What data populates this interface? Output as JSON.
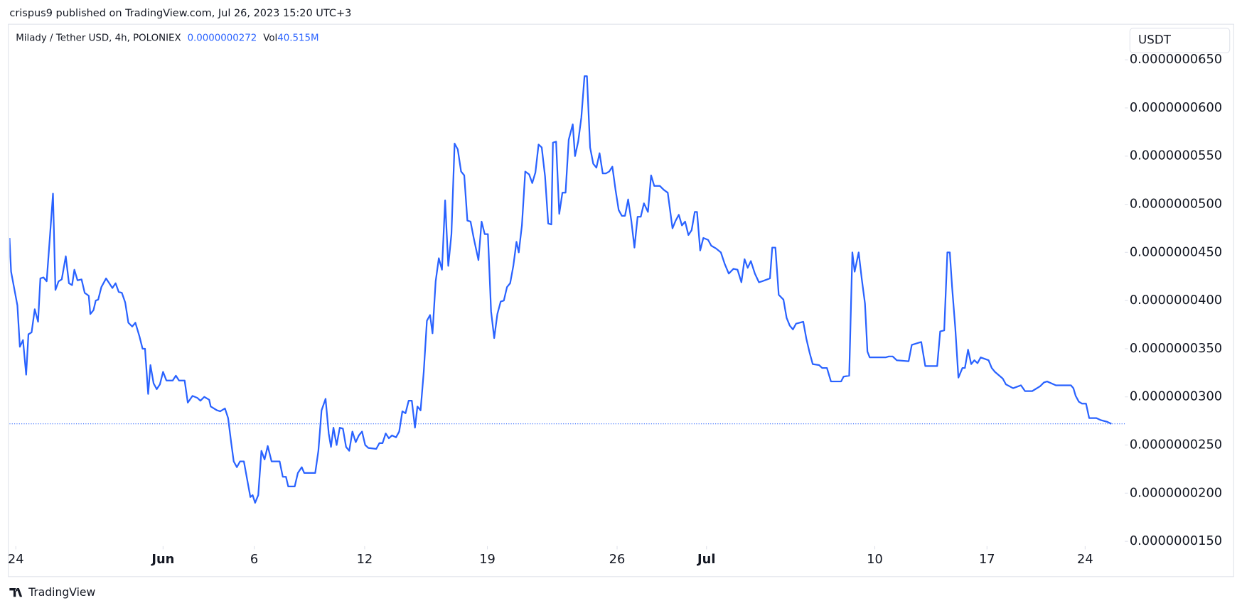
{
  "header": {
    "published": "crispus9 published on TradingView.com, Jul 26, 2023 15:20 UTC+3",
    "symbol": "Milady / Tether USD, 4h, POLONIEX",
    "volume_label": "Vol",
    "volume": "40.515M",
    "currency": "USDT"
  },
  "footer": {
    "brand": "TradingView"
  },
  "chart_data": {
    "type": "line",
    "color": "#2962ff",
    "last_price": {
      "value": 2.72e-08,
      "label": "0.0000000272"
    },
    "xlim": [
      -0.36,
      63.26
    ],
    "xticks": [
      {
        "value": 0,
        "label": "24"
      },
      {
        "value": 8.4,
        "label": "Jun"
      },
      {
        "value": 13.6,
        "label": "6"
      },
      {
        "value": 19.9,
        "label": "12"
      },
      {
        "value": 26.9,
        "label": "19"
      },
      {
        "value": 34.3,
        "label": "26"
      },
      {
        "value": 39.4,
        "label": "Jul"
      },
      {
        "value": 49,
        "label": "10"
      },
      {
        "value": 55.4,
        "label": "17"
      },
      {
        "value": 61,
        "label": "24"
      }
    ],
    "ylim": [
      1.45e-08,
      6.61e-08
    ],
    "yticks": [
      {
        "value": 1.5e-08,
        "label": "0.0000000150"
      },
      {
        "value": 2e-08,
        "label": "0.0000000200"
      },
      {
        "value": 2.5e-08,
        "label": "0.0000000250"
      },
      {
        "value": 3e-08,
        "label": "0.0000000300"
      },
      {
        "value": 3.5e-08,
        "label": "0.0000000350"
      },
      {
        "value": 4e-08,
        "label": "0.0000000400"
      },
      {
        "value": 4.5e-08,
        "label": "0.0000000450"
      },
      {
        "value": 5e-08,
        "label": "0.0000000500"
      },
      {
        "value": 5.5e-08,
        "label": "0.0000000550"
      },
      {
        "value": 6e-08,
        "label": "0.0000000600"
      },
      {
        "value": 6.5e-08,
        "label": "0.0000000650"
      }
    ],
    "grid": false,
    "x": [
      -0.36,
      -0.27,
      0.09,
      0.23,
      0.41,
      0.59,
      0.72,
      0.9,
      1.08,
      1.27,
      1.4,
      1.58,
      1.76,
      1.94,
      2.12,
      2.26,
      2.44,
      2.62,
      2.85,
      3.03,
      3.21,
      3.34,
      3.52,
      3.75,
      3.93,
      4.16,
      4.25,
      4.43,
      4.56,
      4.7,
      4.88,
      5.15,
      5.33,
      5.51,
      5.69,
      5.87,
      6.05,
      6.24,
      6.42,
      6.64,
      6.82,
      7.05,
      7.23,
      7.37,
      7.55,
      7.68,
      7.86,
      8.04,
      8.22,
      8.4,
      8.59,
      8.95,
      9.13,
      9.31,
      9.63,
      9.81,
      10.08,
      10.35,
      10.53,
      10.75,
      11.03,
      11.12,
      11.48,
      11.66,
      11.93,
      12.11,
      12.29,
      12.43,
      12.61,
      12.79,
      13.01,
      13.19,
      13.38,
      13.51,
      13.65,
      13.83,
      14.01,
      14.19,
      14.37,
      14.59,
      15.05,
      15.23,
      15.41,
      15.54,
      15.91,
      16.09,
      16.31,
      16.45,
      16.9,
      17.08,
      17.26,
      17.44,
      17.67,
      17.85,
      17.98,
      18.12,
      18.3,
      18.48,
      18.66,
      18.84,
      19.02,
      19.2,
      19.39,
      19.57,
      19.75,
      19.93,
      20.11,
      20.56,
      20.74,
      20.92,
      21.1,
      21.28,
      21.46,
      21.69,
      21.87,
      22.05,
      22.23,
      22.41,
      22.59,
      22.77,
      22.91,
      23.09,
      23.27,
      23.45,
      23.63,
      23.77,
      23.95,
      24.13,
      24.31,
      24.49,
      24.67,
      24.85,
      25.03,
      25.21,
      25.4,
      25.58,
      25.76,
      25.94,
      26.12,
      26.39,
      26.57,
      26.75,
      26.93,
      27.11,
      27.29,
      27.47,
      27.66,
      27.84,
      28.02,
      28.2,
      28.38,
      28.56,
      28.69,
      28.87,
      29.06,
      29.28,
      29.46,
      29.64,
      29.82,
      30.0,
      30.19,
      30.37,
      30.55,
      30.64,
      30.82,
      31.0,
      31.18,
      31.36,
      31.54,
      31.77,
      31.9,
      32.08,
      32.26,
      32.44,
      32.58,
      32.76,
      32.94,
      33.12,
      33.3,
      33.48,
      33.66,
      33.85,
      34.03,
      34.21,
      34.39,
      34.57,
      34.75,
      34.93,
      35.11,
      35.29,
      35.47,
      35.65,
      35.83,
      36.06,
      36.24,
      36.42,
      36.74,
      36.96,
      37.19,
      37.46,
      37.64,
      37.82,
      38.0,
      38.18,
      38.37,
      38.55,
      38.73,
      38.86,
      39.04,
      39.22,
      39.49,
      39.67,
      39.95,
      40.22,
      40.44,
      40.67,
      40.94,
      41.17,
      41.39,
      41.57,
      41.75,
      41.93,
      42.16,
      42.39,
      42.57,
      43.02,
      43.15,
      43.33,
      43.52,
      43.79,
      43.97,
      44.15,
      44.33,
      44.51,
      44.92,
      45.1,
      45.28,
      45.46,
      45.82,
      46.0,
      46.27,
      46.5,
      47.08,
      47.22,
      47.54,
      47.72,
      47.85,
      48.08,
      48.26,
      48.44,
      48.58,
      48.71,
      49.62,
      49.8,
      50.02,
      50.25,
      50.93,
      51.11,
      51.65,
      51.88,
      52.56,
      52.73,
      52.96,
      53.14,
      53.28,
      53.41,
      53.59,
      53.77,
      54.0,
      54.14,
      54.32,
      54.5,
      54.68,
      54.86,
      55.04,
      55.49,
      55.67,
      55.85,
      56.3,
      56.48,
      56.89,
      57.34,
      57.57,
      57.98,
      58.43,
      58.65,
      58.83,
      59.33,
      60.19,
      60.33,
      60.46,
      60.64,
      60.82,
      61.05,
      61.23,
      61.64,
      61.87,
      62.27,
      62.5
    ],
    "values": [
      4.65e-08,
      4.3e-08,
      3.95e-08,
      3.52e-08,
      3.59e-08,
      3.23e-08,
      3.65e-08,
      3.67e-08,
      3.91e-08,
      3.78e-08,
      4.23e-08,
      4.24e-08,
      4.2e-08,
      4.65e-08,
      5.11e-08,
      4.11e-08,
      4.2e-08,
      4.22e-08,
      4.46e-08,
      4.18e-08,
      4.16e-08,
      4.32e-08,
      4.21e-08,
      4.22e-08,
      4.08e-08,
      4.05e-08,
      3.86e-08,
      3.9e-08,
      4e-08,
      4.01e-08,
      4.14e-08,
      4.23e-08,
      4.18e-08,
      4.13e-08,
      4.18e-08,
      4.09e-08,
      4.08e-08,
      3.98e-08,
      3.77e-08,
      3.73e-08,
      3.77e-08,
      3.63e-08,
      3.5e-08,
      3.5e-08,
      3.03e-08,
      3.33e-08,
      3.14e-08,
      3.08e-08,
      3.13e-08,
      3.26e-08,
      3.17e-08,
      3.17e-08,
      3.22e-08,
      3.17e-08,
      3.17e-08,
      2.94e-08,
      3.01e-08,
      2.99e-08,
      2.96e-08,
      3e-08,
      2.97e-08,
      2.9e-08,
      2.86e-08,
      2.85e-08,
      2.88e-08,
      2.78e-08,
      2.52e-08,
      2.33e-08,
      2.27e-08,
      2.33e-08,
      2.33e-08,
      2.15e-08,
      1.96e-08,
      1.98e-08,
      1.9e-08,
      1.98e-08,
      2.44e-08,
      2.35e-08,
      2.49e-08,
      2.33e-08,
      2.33e-08,
      2.17e-08,
      2.17e-08,
      2.07e-08,
      2.07e-08,
      2.21e-08,
      2.27e-08,
      2.21e-08,
      2.21e-08,
      2.21e-08,
      2.44e-08,
      2.86e-08,
      2.98e-08,
      2.62e-08,
      2.48e-08,
      2.68e-08,
      2.5e-08,
      2.68e-08,
      2.67e-08,
      2.48e-08,
      2.44e-08,
      2.64e-08,
      2.53e-08,
      2.6e-08,
      2.64e-08,
      2.5e-08,
      2.47e-08,
      2.46e-08,
      2.52e-08,
      2.52e-08,
      2.62e-08,
      2.57e-08,
      2.6e-08,
      2.58e-08,
      2.64e-08,
      2.85e-08,
      2.83e-08,
      2.96e-08,
      2.96e-08,
      2.68e-08,
      2.9e-08,
      2.86e-08,
      3.26e-08,
      3.79e-08,
      3.85e-08,
      3.66e-08,
      4.2e-08,
      4.44e-08,
      4.32e-08,
      5.04e-08,
      4.36e-08,
      4.69e-08,
      5.63e-08,
      5.57e-08,
      5.34e-08,
      5.3e-08,
      4.83e-08,
      4.82e-08,
      4.65e-08,
      4.42e-08,
      4.82e-08,
      4.69e-08,
      4.69e-08,
      3.89e-08,
      3.61e-08,
      3.86e-08,
      3.99e-08,
      4e-08,
      4.14e-08,
      4.18e-08,
      4.36e-08,
      4.61e-08,
      4.5e-08,
      4.78e-08,
      5.34e-08,
      5.31e-08,
      5.22e-08,
      5.33e-08,
      5.62e-08,
      5.59e-08,
      5.29e-08,
      4.8e-08,
      4.79e-08,
      5.64e-08,
      5.65e-08,
      4.9e-08,
      5.12e-08,
      5.12e-08,
      5.67e-08,
      5.83e-08,
      5.5e-08,
      5.65e-08,
      5.9e-08,
      6.33e-08,
      6.33e-08,
      5.59e-08,
      5.42e-08,
      5.38e-08,
      5.53e-08,
      5.32e-08,
      5.32e-08,
      5.34e-08,
      5.39e-08,
      5.15e-08,
      4.94e-08,
      4.88e-08,
      4.88e-08,
      5.05e-08,
      4.83e-08,
      4.55e-08,
      4.87e-08,
      4.87e-08,
      5.01e-08,
      4.92e-08,
      5.3e-08,
      5.19e-08,
      5.19e-08,
      5.15e-08,
      5.12e-08,
      4.75e-08,
      4.83e-08,
      4.89e-08,
      4.78e-08,
      4.82e-08,
      4.68e-08,
      4.73e-08,
      4.92e-08,
      4.92e-08,
      4.52e-08,
      4.65e-08,
      4.63e-08,
      4.57e-08,
      4.54e-08,
      4.5e-08,
      4.38e-08,
      4.28e-08,
      4.33e-08,
      4.32e-08,
      4.19e-08,
      4.43e-08,
      4.34e-08,
      4.41e-08,
      4.28e-08,
      4.19e-08,
      4.2e-08,
      4.23e-08,
      4.55e-08,
      4.55e-08,
      4.06e-08,
      4.01e-08,
      3.82e-08,
      3.74e-08,
      3.7e-08,
      3.76e-08,
      3.78e-08,
      3.6e-08,
      3.46e-08,
      3.34e-08,
      3.33e-08,
      3.3e-08,
      3.3e-08,
      3.16e-08,
      3.16e-08,
      3.21e-08,
      3.22e-08,
      4.5e-08,
      4.3e-08,
      4.5e-08,
      4.22e-08,
      3.97e-08,
      3.47e-08,
      3.41e-08,
      3.41e-08,
      3.42e-08,
      3.42e-08,
      3.38e-08,
      3.37e-08,
      3.54e-08,
      3.57e-08,
      3.32e-08,
      3.32e-08,
      3.68e-08,
      3.69e-08,
      4.5e-08,
      4.5e-08,
      4.14e-08,
      3.72e-08,
      3.2e-08,
      3.3e-08,
      3.3e-08,
      3.49e-08,
      3.34e-08,
      3.38e-08,
      3.35e-08,
      3.41e-08,
      3.38e-08,
      3.3e-08,
      3.26e-08,
      3.19e-08,
      3.13e-08,
      3.09e-08,
      3.12e-08,
      3.06e-08,
      3.06e-08,
      3.11e-08,
      3.15e-08,
      3.16e-08,
      3.12e-08,
      3.12e-08,
      3.09e-08,
      3.01e-08,
      2.95e-08,
      2.93e-08,
      2.93e-08,
      2.78e-08,
      2.78e-08,
      2.76e-08,
      2.74e-08,
      2.72e-08
    ]
  }
}
